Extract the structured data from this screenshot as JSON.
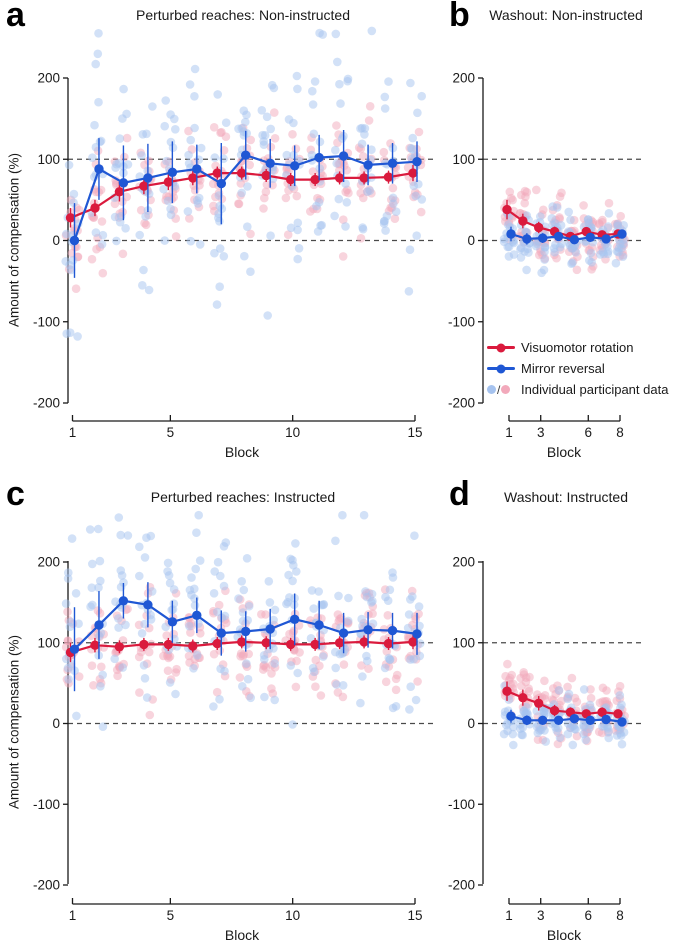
{
  "colors": {
    "red": "#da1a3d",
    "blue": "#1f57d4",
    "red_light": "#f2a9bb",
    "blue_light": "#a6c3ef",
    "axis": "#1a1a1a",
    "dash": "#4a4a4a"
  },
  "legend": {
    "items": [
      {
        "label": "Visuomotor rotation",
        "marker": "line",
        "color_key": "red"
      },
      {
        "label": "Mirror reversal",
        "marker": "line",
        "color_key": "blue"
      },
      {
        "label": "Individual participant data",
        "marker": "dots",
        "separator": "/",
        "color_keys": [
          "blue_light",
          "red_light"
        ]
      }
    ]
  },
  "chart_data": [
    {
      "panel_letter": "a",
      "type": "line-scatter",
      "title": "Perturbed reaches: Non-instructed",
      "xlabel": "Block",
      "ylabel": "Amount of compensation (%)",
      "ylim": [
        -200,
        200
      ],
      "yticks": [
        200,
        100,
        0,
        -100,
        -200
      ],
      "xticks": [
        1,
        5,
        10,
        15
      ],
      "n_blocks": 15,
      "reference_lines": [
        100,
        0
      ],
      "series": [
        {
          "name": "Visuomotor rotation",
          "color_key": "red",
          "means": [
            28,
            40,
            60,
            67,
            72,
            77,
            83,
            83,
            80,
            75,
            75,
            77,
            77,
            78,
            83
          ],
          "err": [
            12,
            10,
            12,
            10,
            10,
            9,
            8,
            8,
            8,
            8,
            8,
            8,
            8,
            8,
            10
          ]
        },
        {
          "name": "Mirror reversal",
          "color_key": "blue",
          "means": [
            0,
            88,
            71,
            77,
            84,
            88,
            70,
            105,
            95,
            92,
            102,
            104,
            93,
            95,
            97
          ],
          "err": [
            46,
            38,
            46,
            42,
            38,
            30,
            50,
            30,
            30,
            25,
            28,
            32,
            25,
            25,
            25
          ]
        }
      ],
      "individual_points": {
        "n_per_block": 16,
        "sd": {
          "red": 30,
          "blue": 62
        },
        "clamp": [
          -150,
          258
        ],
        "jitter": 7,
        "seed": 3
      }
    },
    {
      "panel_letter": "b",
      "type": "line-scatter",
      "title": "Washout: Non-instructed",
      "xlabel": "Block",
      "ylabel": "",
      "ylim": [
        -200,
        200
      ],
      "yticks": [
        200,
        100,
        0,
        -100,
        -200
      ],
      "xticks": [
        1,
        3,
        6,
        8
      ],
      "n_blocks": 8,
      "reference_lines": [
        100,
        0
      ],
      "series": [
        {
          "name": "Visuomotor rotation",
          "color_key": "red",
          "means": [
            38,
            24,
            16,
            11,
            5,
            11,
            7,
            8
          ],
          "err": [
            12,
            9,
            7,
            6,
            5,
            5,
            5,
            5
          ]
        },
        {
          "name": "Mirror reversal",
          "color_key": "blue",
          "means": [
            8,
            2,
            3,
            5,
            1,
            4,
            2,
            8
          ],
          "err": [
            9,
            7,
            6,
            5,
            4,
            5,
            4,
            5
          ]
        }
      ],
      "individual_points": {
        "n_per_block": 16,
        "sd": {
          "red": 20,
          "blue": 17
        },
        "clamp": [
          -40,
          80
        ],
        "jitter": 5,
        "seed": 11
      }
    },
    {
      "panel_letter": "c",
      "type": "line-scatter",
      "title": "Perturbed reaches: Instructed",
      "xlabel": "Block",
      "ylabel": "Amount of compensation (%)",
      "ylim": [
        -200,
        200
      ],
      "yticks": [
        200,
        100,
        0,
        -100,
        -200
      ],
      "xticks": [
        1,
        5,
        10,
        15
      ],
      "n_blocks": 15,
      "reference_lines": [
        100,
        0
      ],
      "series": [
        {
          "name": "Visuomotor rotation",
          "color_key": "red",
          "means": [
            88,
            97,
            95,
            98,
            98,
            96,
            99,
            101,
            100,
            98,
            98,
            100,
            101,
            99,
            101
          ],
          "err": [
            12,
            9,
            8,
            8,
            8,
            8,
            8,
            8,
            8,
            8,
            8,
            8,
            8,
            8,
            9
          ]
        },
        {
          "name": "Mirror reversal",
          "color_key": "blue",
          "means": [
            92,
            122,
            152,
            147,
            126,
            134,
            112,
            114,
            117,
            129,
            122,
            112,
            116,
            115,
            111
          ],
          "err": [
            52,
            42,
            22,
            28,
            26,
            22,
            28,
            25,
            25,
            32,
            30,
            25,
            22,
            22,
            26
          ]
        }
      ],
      "individual_points": {
        "n_per_block": 16,
        "sd": {
          "red": 30,
          "blue": 55
        },
        "clamp": [
          -150,
          258
        ],
        "jitter": 7,
        "seed": 5
      }
    },
    {
      "panel_letter": "d",
      "type": "line-scatter",
      "title": "Washout: Instructed",
      "xlabel": "Block",
      "ylabel": "",
      "ylim": [
        -200,
        200
      ],
      "yticks": [
        200,
        100,
        0,
        -100,
        -200
      ],
      "xticks": [
        1,
        3,
        6,
        8
      ],
      "n_blocks": 8,
      "reference_lines": [
        100,
        0
      ],
      "series": [
        {
          "name": "Visuomotor rotation",
          "color_key": "red",
          "means": [
            40,
            32,
            25,
            16,
            14,
            12,
            14,
            12
          ],
          "err": [
            12,
            10,
            9,
            7,
            6,
            5,
            6,
            5
          ]
        },
        {
          "name": "Mirror reversal",
          "color_key": "blue",
          "means": [
            9,
            4,
            4,
            4,
            6,
            4,
            5,
            2
          ],
          "err": [
            8,
            6,
            5,
            5,
            5,
            4,
            4,
            4
          ]
        }
      ],
      "individual_points": {
        "n_per_block": 16,
        "sd": {
          "red": 18,
          "blue": 14
        },
        "clamp": [
          -45,
          118
        ],
        "jitter": 5,
        "seed": 13
      }
    }
  ]
}
